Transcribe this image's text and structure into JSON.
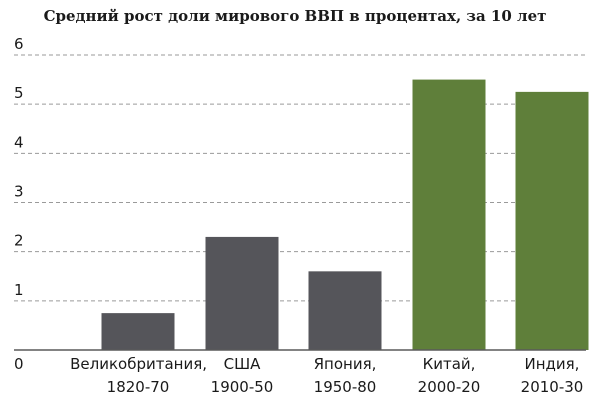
{
  "chart_data": {
    "type": "bar",
    "title": "Средний рост доли мирового ВВП в процентах, за 10 лет",
    "categories": [
      [
        "Великобритания,",
        "1820-70"
      ],
      [
        "США",
        "1900-50"
      ],
      [
        "Япония,",
        "1950-80"
      ],
      [
        "Китай,",
        "2000-20"
      ],
      [
        "Индия,",
        "2010-30"
      ]
    ],
    "values": [
      0.75,
      2.3,
      1.6,
      5.5,
      5.25
    ],
    "bar_colors": [
      "#55555a",
      "#55555a",
      "#55555a",
      "#5f7f3a",
      "#5f7f3a"
    ],
    "ylim": [
      0,
      6
    ],
    "yticks": [
      "0",
      "1",
      "2",
      "3",
      "4",
      "5",
      "6"
    ],
    "grid": true
  }
}
